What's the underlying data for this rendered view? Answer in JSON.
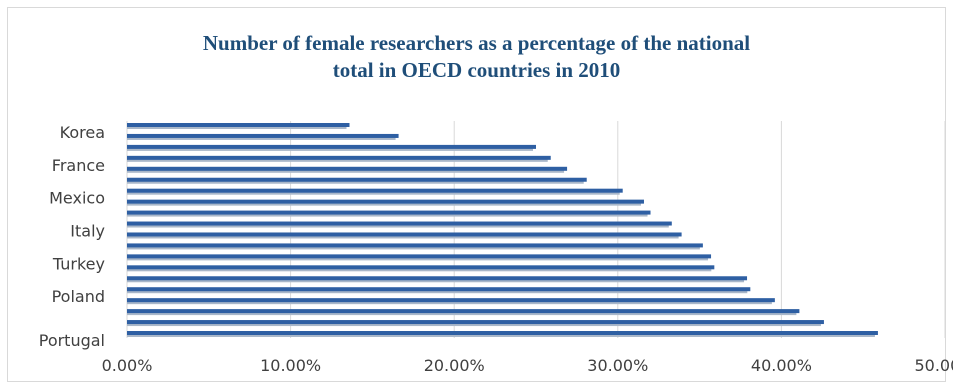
{
  "chart_data": {
    "type": "bar",
    "orientation": "horizontal",
    "title_lines": [
      "Number of female researchers as a percentage of the national",
      "total in OECD countries in 2010"
    ],
    "title": "Number of female researchers as a percentage of the national total in OECD countries in 2010",
    "xlabel": "",
    "ylabel": "",
    "xlim": [
      0,
      50
    ],
    "x_ticks": [
      "0.00%",
      "10.00%",
      "20.00%",
      "30.00%",
      "40.00%",
      "50.00%"
    ],
    "category_labels_shown": [
      "Korea",
      "France",
      "Mexico",
      "Italy",
      "Turkey",
      "Poland",
      "Portugal"
    ],
    "values_top_to_bottom": [
      13.6,
      16.6,
      25.0,
      25.9,
      26.9,
      28.1,
      30.3,
      31.6,
      32.0,
      33.3,
      33.9,
      35.2,
      35.7,
      35.9,
      37.9,
      38.1,
      39.6,
      41.1,
      42.6,
      45.9
    ],
    "grid": "vertical",
    "legend": "none",
    "bar_color": "#2e5fa3",
    "bar_shadow_color": "#a9b7c9",
    "title_color": "#1f4e79"
  }
}
